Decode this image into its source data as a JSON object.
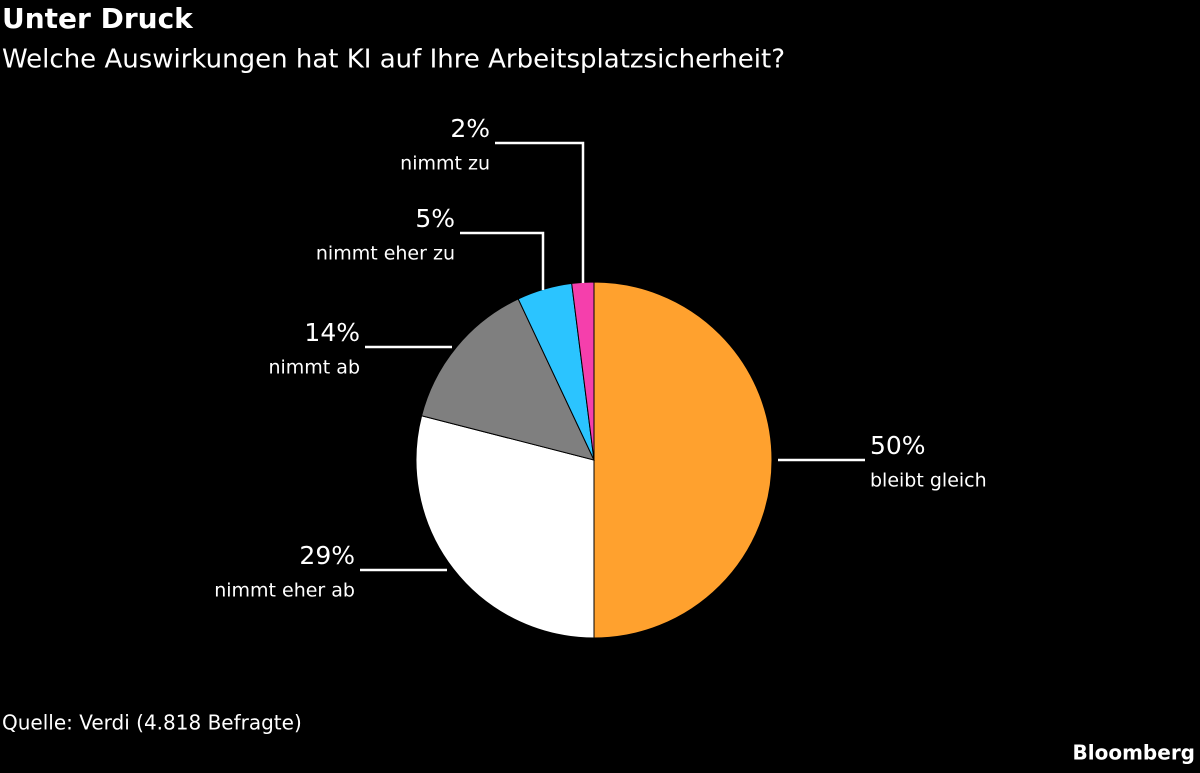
{
  "chart_data": {
    "type": "pie",
    "title": "Unter Druck",
    "subtitle": "Welche Auswirkungen hat KI auf Ihre Arbeitsplatzsicherheit?",
    "categories": [
      "bleibt gleich",
      "nimmt eher ab",
      "nimmt ab",
      "nimmt eher zu",
      "nimmt zu"
    ],
    "values": [
      50,
      29,
      14,
      5,
      2
    ],
    "value_labels": [
      "50%",
      "29%",
      "14%",
      "5%",
      "2%"
    ],
    "colors": [
      "#ffa12e",
      "#ffffff",
      "#7f7f7f",
      "#2bc4ff",
      "#f53fac"
    ],
    "source": "Quelle: Verdi (4.818 Befragte)",
    "credit": "Bloomberg"
  }
}
